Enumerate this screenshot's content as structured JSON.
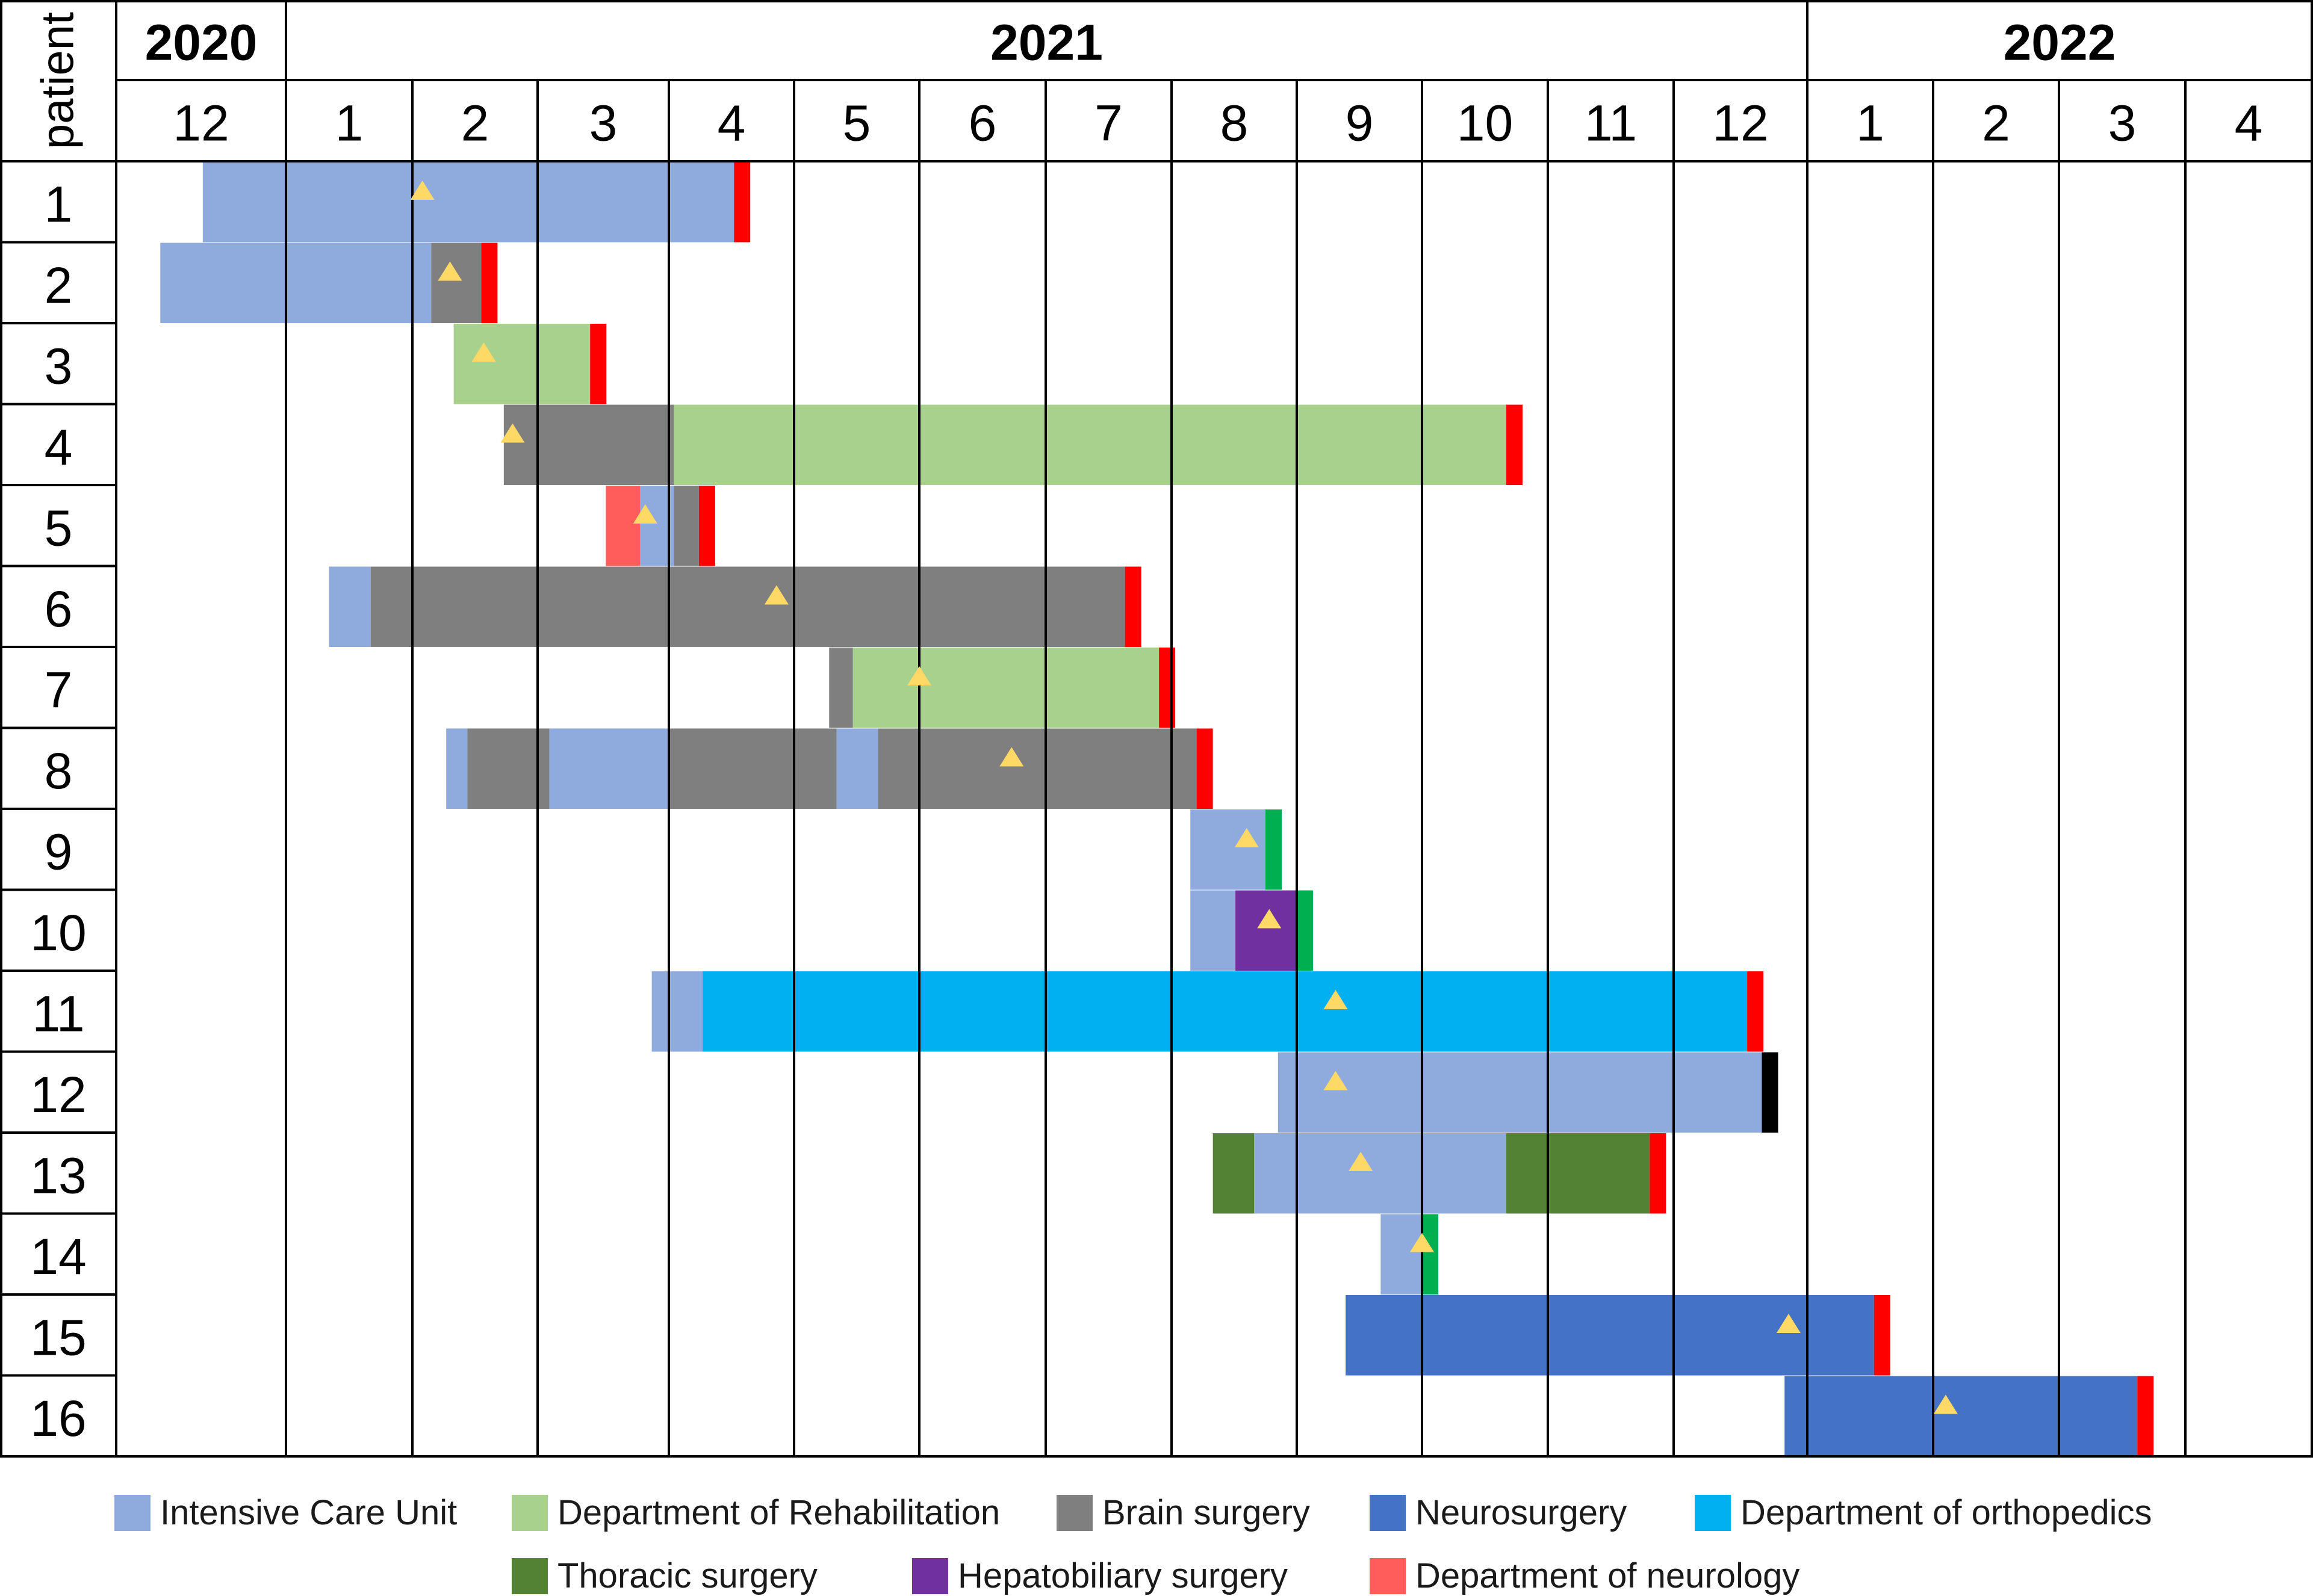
{
  "colors": {
    "Intensive Care Unit": "#8faadc",
    "Department of Rehabilitation": "#a9d18e",
    "Brain surgery": "#7f7f7f",
    "Neurosurgery": "#4472c4",
    "Department of orthopedics": "#00b0f0",
    "Thoracic surgery": "#548235",
    "Hepatobiliary surgery": "#7030a0",
    "Department of neurology": "#ff5c5c",
    "end_red": "#ff0000",
    "end_green": "#00b050",
    "end_black": "#000000",
    "marker": "#ffd966"
  },
  "chart_data": {
    "type": "gantt",
    "y_axis_title": "patient",
    "years": [
      {
        "label": "2020",
        "start": 0,
        "end": 1
      },
      {
        "label": "2021",
        "start": 1,
        "end": 13
      },
      {
        "label": "2022",
        "start": 13,
        "end": 17
      }
    ],
    "months": [
      "12",
      "1",
      "2",
      "3",
      "4",
      "5",
      "6",
      "7",
      "8",
      "9",
      "10",
      "11",
      "12",
      "1",
      "2",
      "3",
      "4"
    ],
    "patients": [
      {
        "label": "1",
        "segments": [
          {
            "unit": "Intensive Care Unit",
            "start": 0.51,
            "end": 4.52
          }
        ],
        "end_marker": {
          "at": 4.52,
          "color": "end_red"
        },
        "triangle": 2.08
      },
      {
        "label": "2",
        "segments": [
          {
            "unit": "Intensive Care Unit",
            "start": 0.26,
            "end": 2.15
          },
          {
            "unit": "Brain surgery",
            "start": 2.15,
            "end": 2.55
          }
        ],
        "end_marker": {
          "at": 2.55,
          "color": "end_red"
        },
        "triangle": 2.3
      },
      {
        "label": "3",
        "segments": [
          {
            "unit": "Department of Rehabilitation",
            "start": 2.33,
            "end": 3.4
          }
        ],
        "end_marker": {
          "at": 3.4,
          "color": "end_red"
        },
        "triangle": 2.57
      },
      {
        "label": "4",
        "segments": [
          {
            "unit": "Brain surgery",
            "start": 2.73,
            "end": 4.04
          },
          {
            "unit": "Department of Rehabilitation",
            "start": 4.04,
            "end": 10.67
          }
        ],
        "end_marker": {
          "at": 10.67,
          "color": "end_red"
        },
        "triangle": 2.8
      },
      {
        "label": "5",
        "segments": [
          {
            "unit": "Department of neurology",
            "start": 3.52,
            "end": 3.78
          },
          {
            "unit": "Intensive Care Unit",
            "start": 3.78,
            "end": 4.04
          },
          {
            "unit": "Brain surgery",
            "start": 4.04,
            "end": 4.24
          }
        ],
        "end_marker": {
          "at": 4.24,
          "color": "end_red"
        },
        "triangle": 3.82
      },
      {
        "label": "6",
        "segments": [
          {
            "unit": "Intensive Care Unit",
            "start": 1.34,
            "end": 1.67
          },
          {
            "unit": "Brain surgery",
            "start": 1.67,
            "end": 7.63
          }
        ],
        "end_marker": {
          "at": 7.63,
          "color": "end_red"
        },
        "triangle": 4.86
      },
      {
        "label": "7",
        "segments": [
          {
            "unit": "Brain surgery",
            "start": 5.28,
            "end": 5.47
          },
          {
            "unit": "Department of Rehabilitation",
            "start": 5.47,
            "end": 7.9
          }
        ],
        "end_marker": {
          "at": 7.9,
          "color": "end_red"
        },
        "triangle": 6.0
      },
      {
        "label": "8",
        "segments": [
          {
            "unit": "Intensive Care Unit",
            "start": 2.27,
            "end": 2.44
          },
          {
            "unit": "Brain surgery",
            "start": 2.44,
            "end": 3.09
          },
          {
            "unit": "Intensive Care Unit",
            "start": 3.09,
            "end": 4.0
          },
          {
            "unit": "Brain surgery",
            "start": 4.0,
            "end": 5.34
          },
          {
            "unit": "Intensive Care Unit",
            "start": 5.34,
            "end": 5.67
          },
          {
            "unit": "Brain surgery",
            "start": 5.67,
            "end": 8.2
          }
        ],
        "end_marker": {
          "at": 8.2,
          "color": "end_red"
        },
        "triangle": 6.73
      },
      {
        "label": "9",
        "segments": [
          {
            "unit": "Intensive Care Unit",
            "start": 8.15,
            "end": 8.75
          }
        ],
        "end_marker": {
          "at": 8.75,
          "color": "end_green"
        },
        "triangle": 8.6
      },
      {
        "label": "10",
        "segments": [
          {
            "unit": "Intensive Care Unit",
            "start": 8.15,
            "end": 8.51
          },
          {
            "unit": "Hepatobiliary surgery",
            "start": 8.51,
            "end": 9.0
          }
        ],
        "end_marker": {
          "at": 9.0,
          "color": "end_green"
        },
        "triangle": 8.78
      },
      {
        "label": "11",
        "segments": [
          {
            "unit": "Intensive Care Unit",
            "start": 3.87,
            "end": 4.27
          },
          {
            "unit": "Department of orthopedics",
            "start": 4.27,
            "end": 12.55
          }
        ],
        "end_marker": {
          "at": 12.55,
          "color": "end_red"
        },
        "triangle": 9.31
      },
      {
        "label": "12",
        "segments": [
          {
            "unit": "Intensive Care Unit",
            "start": 8.85,
            "end": 12.66
          }
        ],
        "end_marker": {
          "at": 12.66,
          "color": "end_black"
        },
        "triangle": 9.31
      },
      {
        "label": "13",
        "segments": [
          {
            "unit": "Thoracic surgery",
            "start": 8.33,
            "end": 8.66
          },
          {
            "unit": "Intensive Care Unit",
            "start": 8.66,
            "end": 10.67
          },
          {
            "unit": "Thoracic surgery",
            "start": 10.67,
            "end": 11.81
          }
        ],
        "end_marker": {
          "at": 11.81,
          "color": "end_red"
        },
        "triangle": 9.51
      },
      {
        "label": "14",
        "segments": [
          {
            "unit": "Intensive Care Unit",
            "start": 9.67,
            "end": 10.0
          }
        ],
        "end_marker": {
          "at": 10.0,
          "color": "end_green"
        },
        "triangle": 10.0
      },
      {
        "label": "15",
        "segments": [
          {
            "unit": "Neurosurgery",
            "start": 9.39,
            "end": 13.53
          }
        ],
        "end_marker": {
          "at": 13.53,
          "color": "end_red"
        },
        "triangle": 12.86
      },
      {
        "label": "16",
        "segments": [
          {
            "unit": "Neurosurgery",
            "start": 12.83,
            "end": 15.62
          }
        ],
        "end_marker": {
          "at": 15.62,
          "color": "end_red"
        },
        "triangle": 14.1
      }
    ],
    "legend_rows": [
      [
        "Intensive Care Unit",
        "Department of Rehabilitation",
        "Brain surgery",
        "Neurosurgery",
        "Department of orthopedics"
      ],
      [
        "Thoracic surgery",
        "Hepatobiliary surgery",
        "Department of neurology"
      ]
    ]
  }
}
